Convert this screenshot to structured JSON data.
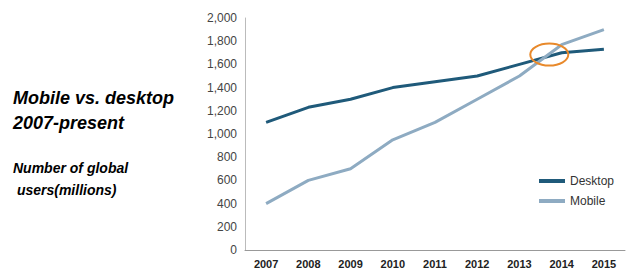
{
  "chart_data": {
    "type": "line",
    "title": "Mobile vs. desktop 2007-present",
    "subtitle": "Number of global users(millions)",
    "categories": [
      "2007",
      "2008",
      "2009",
      "2010",
      "2011",
      "2012",
      "2013",
      "2014",
      "2015"
    ],
    "series": [
      {
        "name": "Desktop",
        "color": "#1f5a7a",
        "values": [
          1100,
          1230,
          1300,
          1400,
          1450,
          1500,
          1600,
          1700,
          1730
        ]
      },
      {
        "name": "Mobile",
        "color": "#8eabc2",
        "values": [
          400,
          600,
          700,
          950,
          1100,
          1300,
          1500,
          1770,
          1900
        ]
      }
    ],
    "ylim": [
      0,
      2000
    ],
    "yticks": [
      0,
      200,
      400,
      600,
      800,
      {
        "value": 1000,
        "label": "1,000"
      },
      {
        "value": 1200,
        "label": "1,200"
      },
      {
        "value": 1400,
        "label": "1,400"
      },
      {
        "value": 1600,
        "label": "1,600"
      },
      {
        "value": 1800,
        "label": "1,800"
      },
      {
        "value": 2000,
        "label": "2,000"
      }
    ],
    "grid": false,
    "legend": "right"
  }
}
